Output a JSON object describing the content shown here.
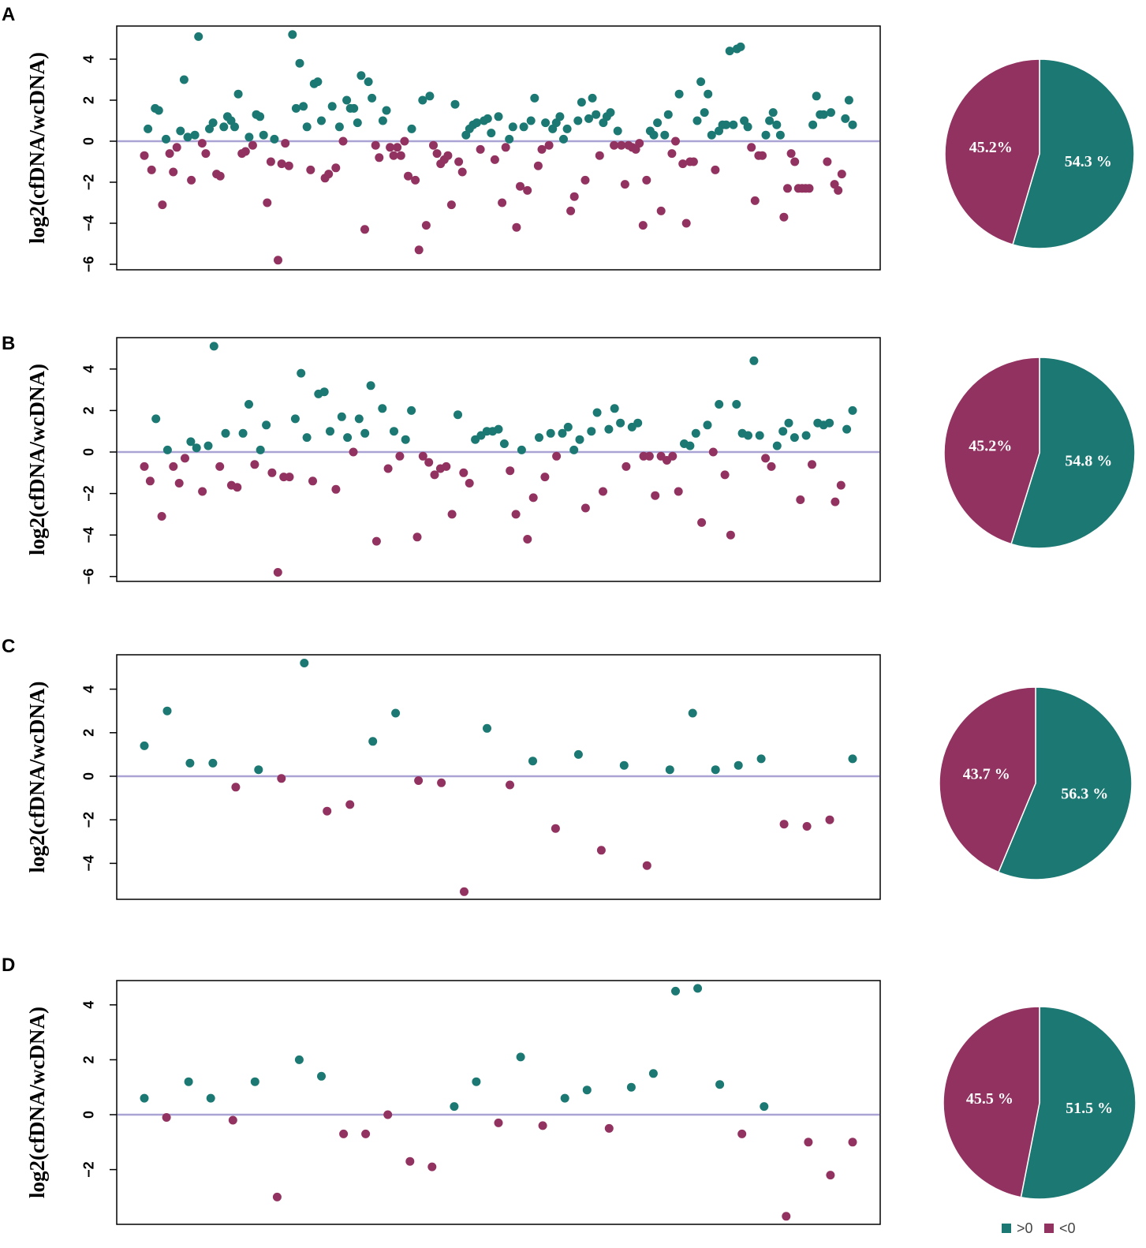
{
  "colors": {
    "positive": "#1b7872",
    "negative": "#923260",
    "zero_line": "#a9a4d4"
  },
  "legend": {
    "pos_label": ">0",
    "neg_label": "<0"
  },
  "chart_data": [
    {
      "panel": "A",
      "type": "scatter",
      "ylabel": "log2(cfDNA/wcDNA)",
      "yticks": [
        4,
        2,
        0,
        -2,
        -4,
        -6
      ],
      "ylim": [
        -6.3,
        5.6
      ],
      "zero_line": 0,
      "values": [
        -0.7,
        0.6,
        -1.4,
        1.6,
        1.5,
        -3.1,
        0.1,
        -0.6,
        -1.5,
        -0.3,
        0.5,
        3.0,
        0.2,
        -1.9,
        0.3,
        5.1,
        -0.1,
        -0.6,
        0.6,
        0.9,
        -1.6,
        -1.7,
        0.7,
        1.2,
        1.0,
        0.7,
        2.3,
        -0.6,
        -0.5,
        0.2,
        -0.2,
        1.3,
        1.2,
        0.3,
        -3.0,
        -1.0,
        0.1,
        -5.8,
        -1.1,
        -0.1,
        -1.2,
        5.2,
        1.6,
        3.8,
        1.7,
        0.7,
        -1.4,
        2.8,
        2.9,
        1.0,
        -1.8,
        -1.6,
        1.7,
        -1.3,
        0.7,
        0.0,
        2.0,
        1.6,
        1.6,
        0.9,
        3.2,
        -4.3,
        2.9,
        2.1,
        -0.2,
        -0.8,
        1.0,
        1.5,
        -0.3,
        -0.7,
        -0.3,
        -0.7,
        0.0,
        -1.7,
        0.6,
        -1.9,
        -5.3,
        2.0,
        -4.1,
        2.2,
        -0.2,
        -0.6,
        -1.1,
        -0.9,
        -0.7,
        -3.1,
        1.8,
        -1.0,
        -1.5,
        0.3,
        0.6,
        0.8,
        0.9,
        -0.4,
        1.0,
        1.1,
        0.4,
        -0.9,
        1.2,
        -3.0,
        -0.3,
        0.1,
        0.7,
        -4.2,
        -2.2,
        0.7,
        -2.4,
        1.0,
        2.1,
        -1.2,
        -0.4,
        0.9,
        -0.2,
        0.6,
        0.9,
        1.2,
        0.1,
        0.6,
        -3.4,
        -2.7,
        1.0,
        1.9,
        -1.9,
        1.1,
        2.1,
        1.3,
        -0.7,
        0.9,
        1.2,
        1.4,
        -0.2,
        0.5,
        -0.2,
        -2.1,
        -0.2,
        -0.3,
        -0.4,
        -0.1,
        -4.1,
        -1.9,
        0.5,
        0.3,
        0.9,
        -3.4,
        0.3,
        1.3,
        -0.6,
        0.0,
        2.3,
        -1.1,
        -4.0,
        -1.0,
        -1.0,
        1.0,
        2.9,
        1.4,
        2.3,
        0.3,
        -1.4,
        0.5,
        0.8,
        0.8,
        4.4,
        0.8,
        4.5,
        4.6,
        1.0,
        0.7,
        -0.3,
        -2.9,
        -0.7,
        -0.7,
        0.3,
        1.0,
        1.4,
        0.8,
        0.3,
        -3.7,
        -2.3,
        -0.6,
        -1.0,
        -2.3,
        -2.3,
        -2.3,
        -2.3,
        0.8,
        2.2,
        1.3,
        1.3,
        -1.0,
        1.4,
        -2.1,
        -2.4,
        -1.6,
        1.1,
        2.0,
        0.8
      ]
    },
    {
      "panel": "B",
      "type": "scatter",
      "ylabel": "log2(cfDNA/wcDNA)",
      "yticks": [
        4,
        2,
        0,
        -2,
        -4,
        -6
      ],
      "ylim": [
        -6.3,
        5.6
      ],
      "zero_line": 0,
      "values": [
        -0.7,
        -1.4,
        1.6,
        -3.1,
        0.1,
        -0.7,
        -1.5,
        -0.3,
        0.5,
        0.2,
        -1.9,
        0.3,
        5.1,
        -0.7,
        0.9,
        -1.6,
        -1.7,
        0.9,
        2.3,
        -0.6,
        0.1,
        1.3,
        -1.0,
        -5.8,
        -1.2,
        -1.2,
        1.6,
        3.8,
        0.7,
        -1.4,
        2.8,
        2.9,
        1.0,
        -1.8,
        1.7,
        0.7,
        0.0,
        1.6,
        0.9,
        3.2,
        -4.3,
        2.1,
        -0.8,
        1.0,
        -0.2,
        0.6,
        2.0,
        -4.1,
        -0.2,
        -0.5,
        -1.1,
        -0.8,
        -0.7,
        -3.0,
        1.8,
        -1.0,
        -1.5,
        0.6,
        0.8,
        1.0,
        1.0,
        1.1,
        0.4,
        -0.9,
        -3.0,
        0.1,
        -4.2,
        -2.2,
        0.7,
        -1.2,
        0.9,
        -0.2,
        0.9,
        1.2,
        0.1,
        0.6,
        -2.7,
        1.0,
        1.9,
        -1.9,
        1.1,
        2.1,
        1.4,
        -0.7,
        1.2,
        1.4,
        -0.2,
        -0.2,
        -2.1,
        -0.2,
        -0.4,
        -0.2,
        -1.9,
        0.4,
        0.3,
        0.9,
        -3.4,
        1.3,
        0.0,
        2.3,
        -1.1,
        -4.0,
        2.3,
        0.9,
        0.8,
        4.4,
        0.8,
        -0.3,
        -0.7,
        0.3,
        1.0,
        1.4,
        0.7,
        -2.3,
        0.8,
        -0.6,
        1.4,
        1.3,
        1.4,
        -2.4,
        -1.6,
        1.1,
        2.0
      ]
    },
    {
      "panel": "C",
      "type": "scatter",
      "ylabel": "log2(cfDNA/wcDNA)",
      "yticks": [
        4,
        2,
        0,
        -2,
        -4
      ],
      "ylim": [
        -5.6,
        5.6
      ],
      "zero_line": 0,
      "values": [
        1.4,
        3.0,
        0.6,
        0.6,
        -0.5,
        0.3,
        -0.1,
        5.2,
        -1.6,
        -1.3,
        1.6,
        2.9,
        -0.2,
        -0.3,
        -5.3,
        2.2,
        -0.4,
        0.7,
        -2.4,
        1.0,
        -3.4,
        0.5,
        -4.1,
        0.3,
        2.9,
        0.3,
        0.5,
        0.8,
        -2.2,
        -2.3,
        -2.0,
        0.8
      ]
    },
    {
      "panel": "D",
      "type": "scatter",
      "ylabel": "log2(cfDNA/wcDNA)",
      "yticks": [
        4,
        2,
        0,
        -2
      ],
      "ylim": [
        -3.9,
        4.9
      ],
      "zero_line": 0,
      "values": [
        0.6,
        -0.1,
        1.2,
        0.6,
        -0.2,
        1.2,
        -3.0,
        2.0,
        1.4,
        -0.7,
        -0.7,
        0.0,
        -1.7,
        -1.9,
        0.3,
        1.2,
        -0.3,
        2.1,
        -0.4,
        0.6,
        0.9,
        -0.5,
        1.0,
        1.5,
        4.5,
        4.6,
        1.1,
        -0.7,
        0.3,
        -3.7,
        -1.0,
        -2.2,
        -1.0
      ]
    }
  ],
  "pie_data": [
    {
      "panel": "A",
      "type": "pie",
      "slices": [
        {
          "name": ">0",
          "value": 54.3,
          "label": "54.3 %"
        },
        {
          "name": "<0",
          "value": 45.2,
          "label": "45.2%"
        }
      ]
    },
    {
      "panel": "B",
      "type": "pie",
      "slices": [
        {
          "name": ">0",
          "value": 54.8,
          "label": "54.8 %"
        },
        {
          "name": "<0",
          "value": 45.2,
          "label": "45.2%"
        }
      ]
    },
    {
      "panel": "C",
      "type": "pie",
      "slices": [
        {
          "name": ">0",
          "value": 56.3,
          "label": "56.3 %"
        },
        {
          "name": "<0",
          "value": 43.7,
          "label": "43.7 %"
        }
      ]
    },
    {
      "panel": "D",
      "type": "pie",
      "slices": [
        {
          "name": ">0",
          "value": 51.5,
          "label": "51.5 %"
        },
        {
          "name": "<0",
          "value": 45.5,
          "label": "45.5 %"
        }
      ]
    }
  ]
}
